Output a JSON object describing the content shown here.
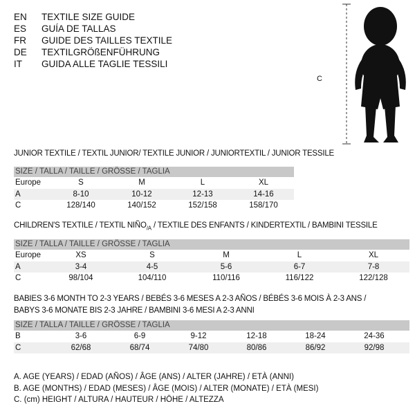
{
  "languages": [
    {
      "code": "EN",
      "text": "TEXTILE SIZE GUIDE"
    },
    {
      "code": "ES",
      "text": "GUÍA DE TALLAS"
    },
    {
      "code": "FR",
      "text": "GUIDE DES TAILLES TEXTILE"
    },
    {
      "code": "DE",
      "text": "TEXTILGRÖßENFÜHRUNG"
    },
    {
      "code": "IT",
      "text": "GUIDA ALLE TAGLIE TESSILI"
    }
  ],
  "figure": {
    "measure_label": "C",
    "icon": "baby-silhouette"
  },
  "size_header": "SIZE / TALLA / TAILLE / GRÖSSE / TAGLIA",
  "junior": {
    "title": "JUNIOR TEXTILE / TEXTIL JUNIOR/ TEXTILE JUNIOR / JUNIORTEXTIL / JUNIOR TESSILE",
    "rows": [
      {
        "label": "Europe",
        "values": [
          "S",
          "M",
          "L",
          "XL"
        ]
      },
      {
        "label": "A",
        "values": [
          "8-10",
          "10-12",
          "12-13",
          "14-16"
        ]
      },
      {
        "label": "C",
        "values": [
          "128/140",
          "140/152",
          "152/158",
          "158/170"
        ]
      }
    ]
  },
  "children": {
    "title": "CHILDREN'S TEXTILE / TEXTIL NIÑO",
    "title_sub": "/A",
    "title_rest": " / TEXTILE DES ENFANTS / KINDERTEXTIL / BAMBINI TESSILE",
    "rows": [
      {
        "label": "Europe",
        "values": [
          "XS",
          "S",
          "M",
          "L",
          "XL"
        ]
      },
      {
        "label": "A",
        "values": [
          "3-4",
          "4-5",
          "5-6",
          "6-7",
          "7-8"
        ]
      },
      {
        "label": "C",
        "values": [
          "98/104",
          "104/110",
          "110/116",
          "116/122",
          "122/128"
        ]
      }
    ]
  },
  "babies": {
    "title_line1": "BABIES 3-6 MONTH TO 2-3 YEARS / BEBÉS 3-6 MESES A 2-3 AÑOS / BÉBÉS 3-6 MOIS À 2-3 ANS /",
    "title_line2": "BABYS 3-6 MONATE BIS 2-3 JAHRE / BAMBINI 3-6 MESI A 2-3 ANNI",
    "rows": [
      {
        "label": "B",
        "values": [
          "3-6",
          "6-9",
          "9-12",
          "12-18",
          "18-24",
          "24-36"
        ]
      },
      {
        "label": "C",
        "values": [
          "62/68",
          "68/74",
          "74/80",
          "80/86",
          "86/92",
          "92/98"
        ]
      }
    ]
  },
  "legend": [
    "A. AGE (YEARS) / EDAD (AÑOS) / ÂGE (ANS) / ALTER (JAHRE) / ETÀ (ANNI)",
    "B. AGE (MONTHS) / EDAD (MESES) / ÂGE (MOIS) / ALTER (MONATE) / ETÀ (MESI)",
    "C. (cm) HEIGHT / ALTURA / HAUTEUR / HÖHE / ALTEZZA"
  ]
}
